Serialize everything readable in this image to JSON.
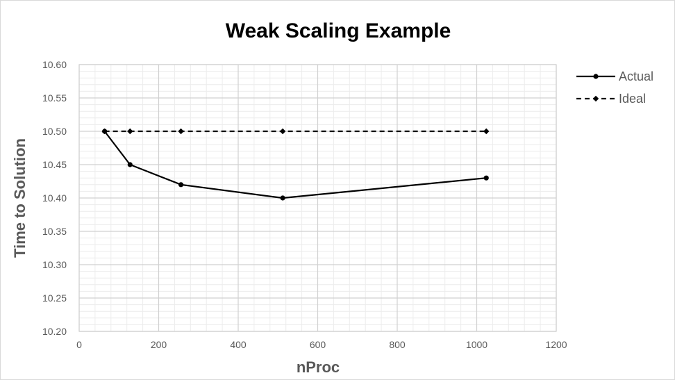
{
  "chart_data": {
    "type": "line",
    "title": "Weak Scaling Example",
    "xlabel": "nProc",
    "ylabel": "Time to Solution",
    "xlim": [
      0,
      1200
    ],
    "ylim": [
      10.2,
      10.6
    ],
    "x_ticks": [
      "0",
      "200",
      "400",
      "600",
      "800",
      "1000",
      "1200"
    ],
    "y_ticks": [
      "10.20",
      "10.25",
      "10.30",
      "10.35",
      "10.40",
      "10.45",
      "10.50",
      "10.55",
      "10.60"
    ],
    "grid": true,
    "legend_position": "right",
    "series": [
      {
        "name": "Actual",
        "line_style": "solid",
        "marker": "circle",
        "color": "#000000",
        "x": [
          64,
          128,
          256,
          512,
          1024
        ],
        "y": [
          10.5,
          10.45,
          10.42,
          10.4,
          10.43
        ]
      },
      {
        "name": "Ideal",
        "line_style": "dashed",
        "marker": "diamond",
        "color": "#000000",
        "x": [
          64,
          128,
          256,
          512,
          1024
        ],
        "y": [
          10.5,
          10.5,
          10.5,
          10.5,
          10.5
        ]
      }
    ]
  }
}
